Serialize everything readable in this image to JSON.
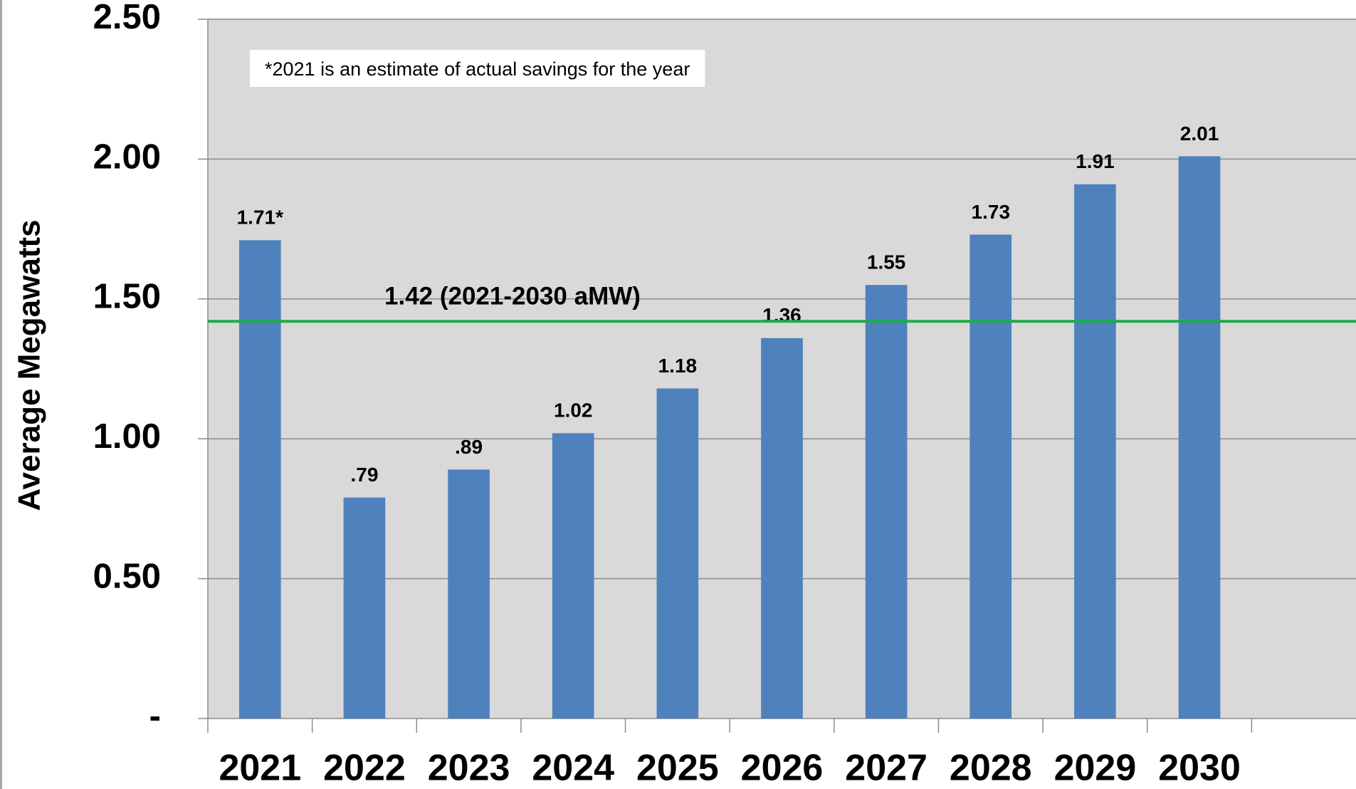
{
  "chart_data": {
    "type": "bar",
    "y_label": "Average Megawatts",
    "annotation": "*2021 is an estimate of actual savings for the year",
    "categories": [
      "2021",
      "2022",
      "2023",
      "2024",
      "2025",
      "2026",
      "2027",
      "2028",
      "2029",
      "2030"
    ],
    "values": [
      1.71,
      0.79,
      0.89,
      1.02,
      1.18,
      1.36,
      1.55,
      1.73,
      1.91,
      2.01
    ],
    "value_labels": [
      "1.71*",
      ".79",
      ".89",
      "1.02",
      "1.18",
      "1.36",
      "1.55",
      "1.73",
      "1.91",
      "2.01"
    ],
    "color": "#4f81bd",
    "average": {
      "value": 1.42,
      "label": "1.42 (2021-2030 aMW)",
      "color": "#1fab4a"
    },
    "ylim": [
      0,
      2.5
    ],
    "yticks": [
      {
        "value": 0,
        "label": "-"
      },
      {
        "value": 0.5,
        "label": "0.50"
      },
      {
        "value": 1,
        "label": "1.00"
      },
      {
        "value": 1.5,
        "label": "1.50"
      },
      {
        "value": 2,
        "label": "2.00"
      },
      {
        "value": 2.5,
        "label": "2.50"
      }
    ],
    "grid": true
  }
}
